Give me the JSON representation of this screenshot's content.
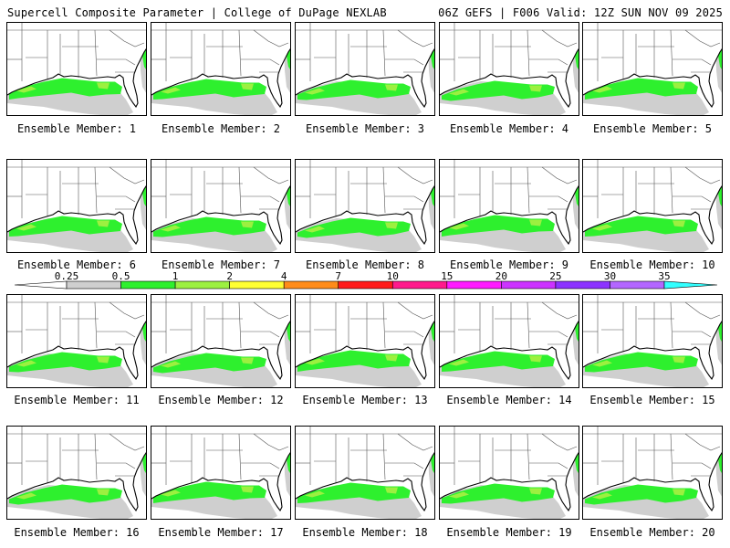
{
  "header": {
    "left": "Supercell Composite Parameter | College of DuPage NEXLAB",
    "right": "06Z GEFS | F006 Valid: 12Z SUN NOV 09 2025"
  },
  "members": [
    {
      "label": "Ensemble Member: 1"
    },
    {
      "label": "Ensemble Member: 2"
    },
    {
      "label": "Ensemble Member: 3"
    },
    {
      "label": "Ensemble Member: 4"
    },
    {
      "label": "Ensemble Member: 5"
    },
    {
      "label": "Ensemble Member: 6"
    },
    {
      "label": "Ensemble Member: 7"
    },
    {
      "label": "Ensemble Member: 8"
    },
    {
      "label": "Ensemble Member: 9"
    },
    {
      "label": "Ensemble Member: 10"
    },
    {
      "label": "Ensemble Member: 11"
    },
    {
      "label": "Ensemble Member: 12"
    },
    {
      "label": "Ensemble Member: 13"
    },
    {
      "label": "Ensemble Member: 14"
    },
    {
      "label": "Ensemble Member: 15"
    },
    {
      "label": "Ensemble Member: 16"
    },
    {
      "label": "Ensemble Member: 17"
    },
    {
      "label": "Ensemble Member: 18"
    },
    {
      "label": "Ensemble Member: 19"
    },
    {
      "label": "Ensemble Member: 20"
    }
  ],
  "colorbar": {
    "ticks": [
      "0.25",
      "0.5",
      "1",
      "2",
      "4",
      "7",
      "10",
      "15",
      "20",
      "25",
      "30",
      "35"
    ],
    "colors": [
      "#cfcfcf",
      "#2ef02e",
      "#9cf040",
      "#ffff33",
      "#ff8c1a",
      "#ff1a1a",
      "#ff1a8c",
      "#ff1aff",
      "#cc33ff",
      "#8c33ff",
      "#b366ff",
      "#33ffff"
    ]
  }
}
